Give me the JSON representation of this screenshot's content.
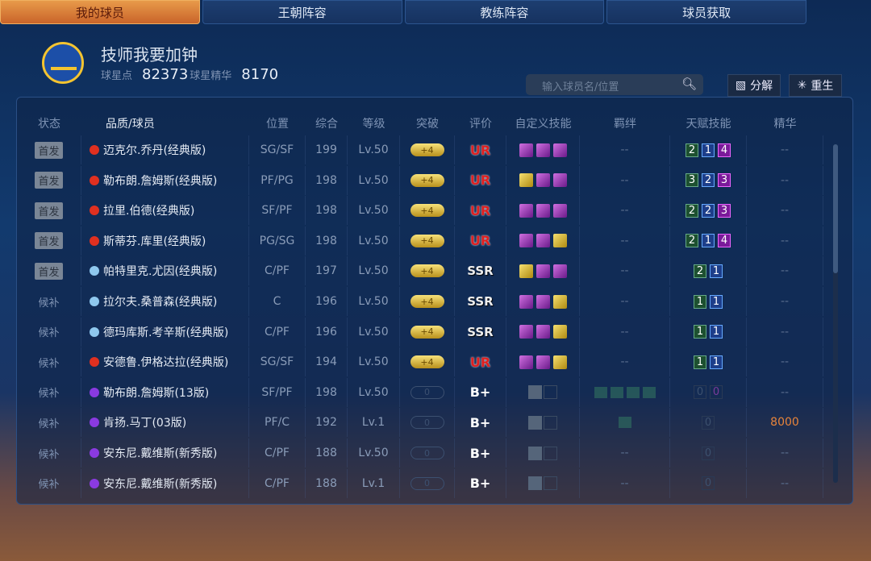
{
  "tabs": [
    "我的球员",
    "王朝阵容",
    "教练阵容",
    "球员获取"
  ],
  "team": {
    "name": "技师我要加钟",
    "points_label": "球星点",
    "points": "82373",
    "essence_label": "球星精华",
    "essence": "8170"
  },
  "search": {
    "placeholder": "输入球员名/位置"
  },
  "actions": {
    "decompose": "分解",
    "rebirth": "重生"
  },
  "columns": [
    "状态",
    "品质/球员",
    "位置",
    "综合",
    "等级",
    "突破",
    "评价",
    "自定义技能",
    "羁绊",
    "天赋技能",
    "精华"
  ],
  "colors": {
    "UR": "#e03020",
    "SSR": "#8fc8ee",
    "B+": "#8a3ae0"
  },
  "rows": [
    {
      "status": "首发",
      "starter": true,
      "name": "迈克尔.乔丹(经典版)",
      "pos": "SG/SF",
      "ovr": "199",
      "lv": "Lv.50",
      "brk": "+4",
      "rating": "UR",
      "skills": [
        "p",
        "p",
        "p"
      ],
      "bond": "--",
      "talent": [
        "2",
        "1",
        "4"
      ],
      "essence": "--"
    },
    {
      "status": "首发",
      "starter": true,
      "name": "勒布朗.詹姆斯(经典版)",
      "pos": "PF/PG",
      "ovr": "198",
      "lv": "Lv.50",
      "brk": "+4",
      "rating": "UR",
      "skills": [
        "g",
        "p",
        "p"
      ],
      "bond": "--",
      "talent": [
        "3",
        "2",
        "3"
      ],
      "essence": "--"
    },
    {
      "status": "首发",
      "starter": true,
      "name": "拉里.伯德(经典版)",
      "pos": "SF/PF",
      "ovr": "198",
      "lv": "Lv.50",
      "brk": "+4",
      "rating": "UR",
      "skills": [
        "p",
        "p",
        "p"
      ],
      "bond": "--",
      "talent": [
        "2",
        "2",
        "3"
      ],
      "essence": "--"
    },
    {
      "status": "首发",
      "starter": true,
      "name": "斯蒂芬.库里(经典版)",
      "pos": "PG/SG",
      "ovr": "198",
      "lv": "Lv.50",
      "brk": "+4",
      "rating": "UR",
      "skills": [
        "p",
        "p",
        "g"
      ],
      "bond": "--",
      "talent": [
        "2",
        "1",
        "4"
      ],
      "essence": "--"
    },
    {
      "status": "首发",
      "starter": true,
      "name": "帕特里克.尤因(经典版)",
      "pos": "C/PF",
      "ovr": "197",
      "lv": "Lv.50",
      "brk": "+4",
      "rating": "SSR",
      "skills": [
        "g",
        "p",
        "p"
      ],
      "bond": "--",
      "talent": [
        "2",
        "1"
      ],
      "essence": "--"
    },
    {
      "status": "候补",
      "starter": false,
      "name": "拉尔夫.桑普森(经典版)",
      "pos": "C",
      "ovr": "196",
      "lv": "Lv.50",
      "brk": "+4",
      "rating": "SSR",
      "skills": [
        "p",
        "p",
        "g"
      ],
      "bond": "--",
      "talent": [
        "1",
        "1"
      ],
      "essence": "--"
    },
    {
      "status": "候补",
      "starter": false,
      "name": "德玛库斯.考辛斯(经典版)",
      "pos": "C/PF",
      "ovr": "196",
      "lv": "Lv.50",
      "brk": "+4",
      "rating": "SSR",
      "skills": [
        "p",
        "p",
        "g"
      ],
      "bond": "--",
      "talent": [
        "1",
        "1"
      ],
      "essence": "--"
    },
    {
      "status": "候补",
      "starter": false,
      "name": "安德鲁.伊格达拉(经典版)",
      "pos": "SG/SF",
      "ovr": "194",
      "lv": "Lv.50",
      "brk": "+4",
      "rating": "UR",
      "skills": [
        "p",
        "p",
        "g"
      ],
      "bond": "--",
      "talent": [
        "1",
        "1"
      ],
      "essence": "--"
    },
    {
      "status": "候补",
      "starter": false,
      "name": "勒布朗.詹姆斯(13版)",
      "pos": "SF/PF",
      "ovr": "198",
      "lv": "Lv.50",
      "brk": "0",
      "rating": "B+",
      "skills": [
        "lock"
      ],
      "bond": 4,
      "talent": [
        "0",
        "0"
      ],
      "essence": "--"
    },
    {
      "status": "候补",
      "starter": false,
      "name": "肯扬.马丁(03版)",
      "pos": "PF/C",
      "ovr": "192",
      "lv": "Lv.1",
      "brk": "0",
      "rating": "B+",
      "skills": [
        "lock"
      ],
      "bond": 1,
      "talent": [
        "0"
      ],
      "essence": "8000"
    },
    {
      "status": "候补",
      "starter": false,
      "name": "安东尼.戴维斯(新秀版)",
      "pos": "C/PF",
      "ovr": "188",
      "lv": "Lv.50",
      "brk": "0",
      "rating": "B+",
      "skills": [
        "lock"
      ],
      "bond": "--",
      "talent": [
        "0"
      ],
      "essence": "--"
    },
    {
      "status": "候补",
      "starter": false,
      "name": "安东尼.戴维斯(新秀版)",
      "pos": "C/PF",
      "ovr": "188",
      "lv": "Lv.1",
      "brk": "0",
      "rating": "B+",
      "skills": [
        "lock"
      ],
      "bond": "--",
      "talent": [
        "0"
      ],
      "essence": "--"
    }
  ]
}
